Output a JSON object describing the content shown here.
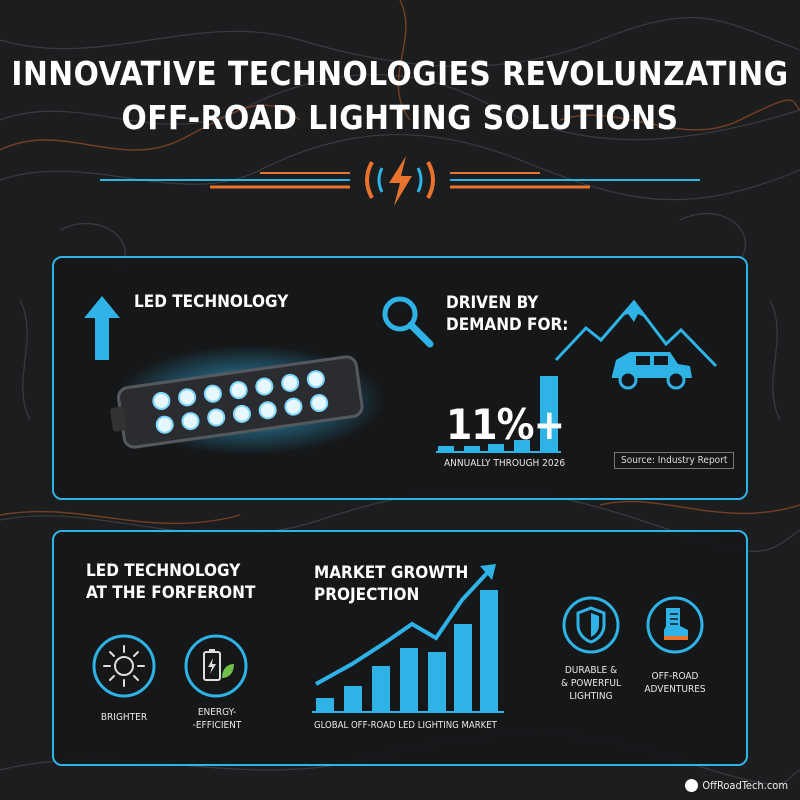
{
  "title": {
    "line1": "INNOVATIVE TECHNOLOGIES REVOLUNZATING",
    "line2": "OFF-ROAD LIGHTING SOLUTIONS"
  },
  "colors": {
    "accent": "#2fb3e6",
    "orange": "#e8732c",
    "background": "#1c1d1f"
  },
  "panel1": {
    "led_heading": "LED TECHNOLOGY",
    "demand_heading_line1": "DRIVEN BY",
    "demand_heading_line2": "DEMAND FOR:",
    "growth_value": "11%+",
    "growth_caption": "ANNUALLY THROUGH 2026",
    "source": "Source: Industry Report",
    "icons": [
      "up-arrow-icon",
      "led-light-bar-image",
      "magnifier-icon",
      "mountain-icon",
      "off-road-vehicle-icon"
    ]
  },
  "panel2": {
    "heading_line1": "LED TECHNOLOGY",
    "heading_line2": "AT THE FORFERONT",
    "feature_brighter": "BRIGHTER",
    "feature_energy_line1": "ENERGY-",
    "feature_energy_line2": "-EFFICIENT",
    "market_heading_line1": "MARKET GROWTH",
    "market_heading_line2": "PROJECTION",
    "market_caption": "GLOBAL OFF-ROAD LED LIGHTING MARKET",
    "durable_line1": "DURABLE &",
    "durable_line2": "& POWERFUL",
    "durable_line3": "LIGHTING",
    "offroad_line1": "OFF-ROAD",
    "offroad_line2": "ADVENTURES",
    "icons": [
      "sun-icon",
      "battery-leaf-icon",
      "shield-icon",
      "boot-icon"
    ]
  },
  "footer": {
    "brand": "OffRoadTech.com"
  }
}
